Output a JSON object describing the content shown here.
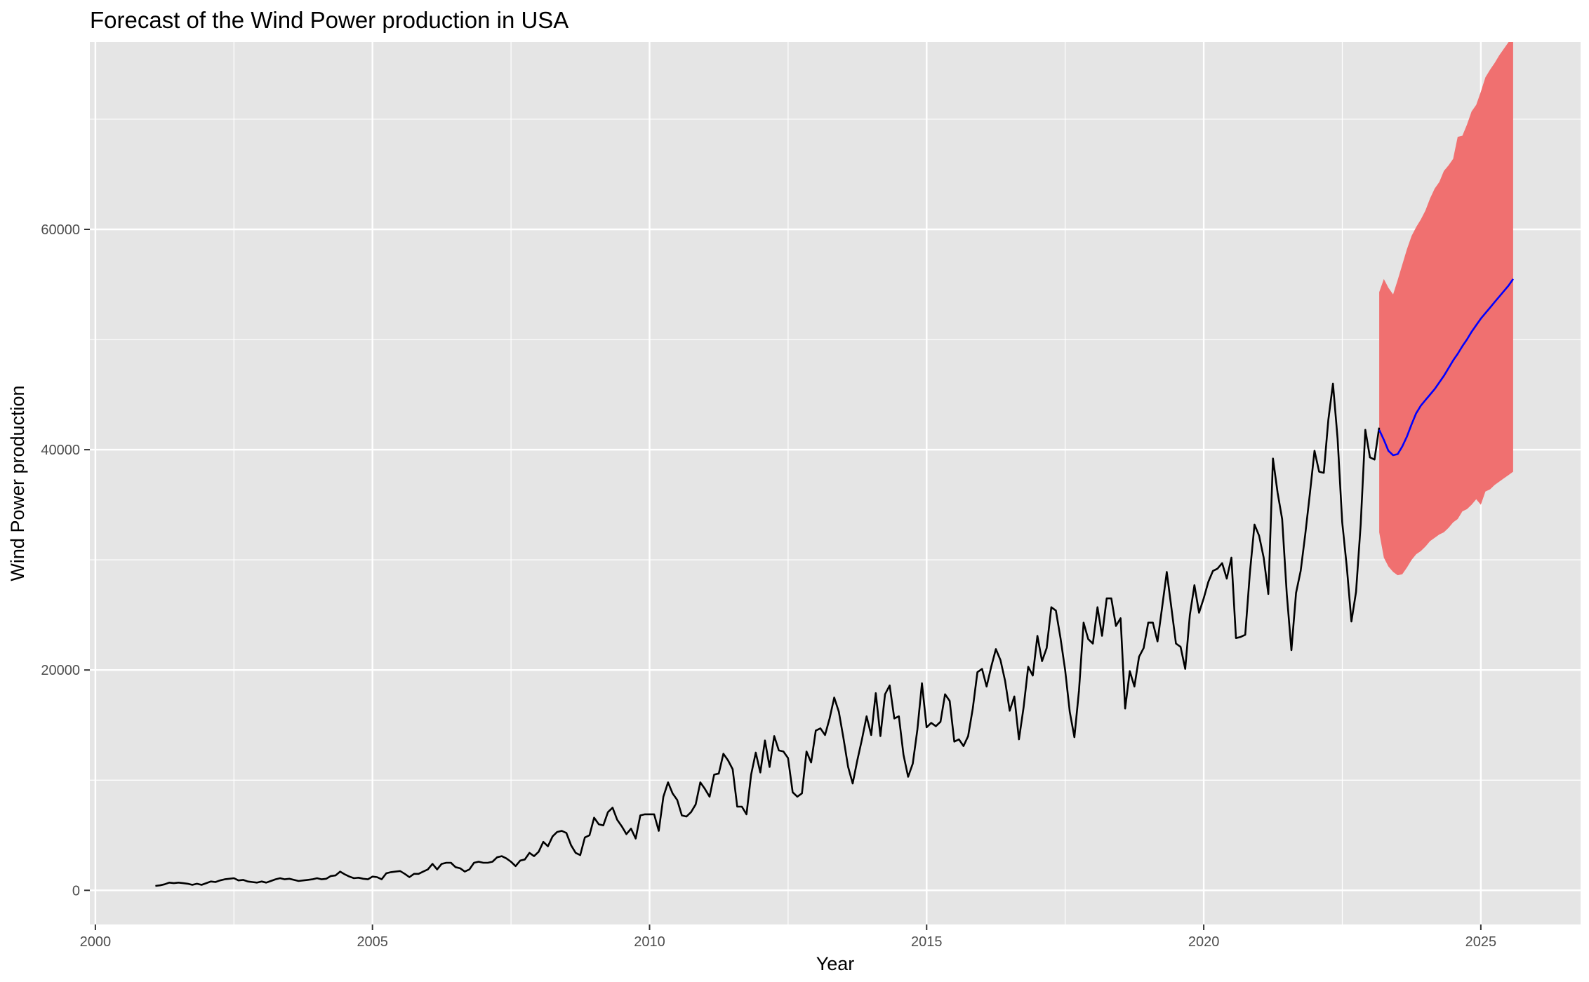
{
  "chart_data": {
    "type": "line",
    "title": "Forecast of the Wind Power production in USA",
    "xlabel": "Year",
    "ylabel": "Wind Power production",
    "xlim": [
      1999.9,
      2026.8
    ],
    "ylim": [
      -3100,
      77000
    ],
    "x_ticks": [
      2000,
      2005,
      2010,
      2015,
      2020,
      2025
    ],
    "x_tick_labels": [
      "2000",
      "2005",
      "2010",
      "2015",
      "2020",
      "2025"
    ],
    "y_ticks": [
      0,
      20000,
      40000,
      60000
    ],
    "y_tick_labels": [
      "0",
      "20000",
      "40000",
      "60000"
    ],
    "grid": true,
    "background": "#e5e5e5",
    "colors": {
      "history": "#000000",
      "forecast": "#0000ff",
      "interval": "#f07070"
    },
    "history": {
      "x_start": 2001.083,
      "x_step": 0.08333,
      "values": [
        400,
        450,
        550,
        700,
        650,
        700,
        650,
        600,
        500,
        600,
        500,
        650,
        800,
        750,
        900,
        1000,
        1050,
        1100,
        900,
        950,
        800,
        750,
        700,
        800,
        700,
        850,
        1000,
        1100,
        1000,
        1050,
        950,
        850,
        900,
        950,
        1000,
        1100,
        1000,
        1050,
        1300,
        1350,
        1700,
        1450,
        1250,
        1100,
        1150,
        1050,
        1000,
        1250,
        1200,
        1000,
        1550,
        1650,
        1700,
        1750,
        1500,
        1200,
        1500,
        1500,
        1700,
        1900,
        2400,
        1900,
        2400,
        2500,
        2500,
        2100,
        2000,
        1700,
        1900,
        2500,
        2600,
        2500,
        2500,
        2600,
        3000,
        3100,
        2900,
        2600,
        2200,
        2700,
        2800,
        3400,
        3100,
        3500,
        4400,
        4000,
        4900,
        5300,
        5400,
        5200,
        4100,
        3400,
        3200,
        4800,
        5000,
        6600,
        6000,
        5900,
        7100,
        7500,
        6400,
        5800,
        5100,
        5600,
        4700,
        6800,
        6900,
        6900,
        6900,
        5400,
        8500,
        9800,
        8800,
        8200,
        6800,
        6700,
        7100,
        7800,
        9800,
        9200,
        8500,
        10500,
        10600,
        12400,
        11800,
        11000,
        7600,
        7600,
        6900,
        10500,
        12500,
        10700,
        13600,
        11200,
        14000,
        12700,
        12600,
        12000,
        8900,
        8500,
        8800,
        12600,
        11600,
        14500,
        14700,
        14100,
        15600,
        17500,
        16200,
        13800,
        11200,
        9700,
        11800,
        13700,
        15800,
        14100,
        17900,
        14000,
        17800,
        18600,
        15600,
        15800,
        12300,
        10300,
        11500,
        14600,
        18800,
        14800,
        15200,
        14900,
        15300,
        17800,
        17200,
        13500,
        13700,
        13100,
        14000,
        16500,
        19800,
        20100,
        18500,
        20300,
        21900,
        20900,
        19000,
        16300,
        17600,
        13700,
        16600,
        20300,
        19500,
        23100,
        20800,
        22000,
        25700,
        25400,
        22900,
        20000,
        16200,
        13900,
        18100,
        24300,
        22800,
        22400,
        25700,
        23100,
        26500,
        26500,
        24000,
        24700,
        16500,
        19900,
        18500,
        21200,
        22000,
        24300,
        24300,
        22600,
        25700,
        28900,
        25700,
        22400,
        22100,
        20100,
        25000,
        27700,
        25200,
        26500,
        28000,
        29000,
        29200,
        29700,
        28300,
        30200,
        22900,
        23000,
        23200,
        28800,
        33200,
        32200,
        30200,
        26900,
        39200,
        36100,
        33700,
        26900,
        21800,
        27000,
        29000,
        32300,
        36000,
        39900,
        38000,
        37900,
        42700,
        46000,
        41000,
        33400,
        29300,
        24400,
        27100,
        33200,
        41800,
        39300,
        39100,
        42000
      ]
    },
    "forecast": {
      "x": [
        2023.167,
        2023.25,
        2023.333,
        2023.417,
        2023.5,
        2023.583,
        2023.667,
        2023.75,
        2023.833,
        2023.917,
        2024.0,
        2024.083,
        2024.167,
        2024.25,
        2024.333,
        2024.417,
        2024.5,
        2024.583,
        2024.667,
        2024.75,
        2024.833,
        2024.917,
        2025.0,
        2025.083,
        2025.167,
        2025.25,
        2025.333,
        2025.417,
        2025.5,
        2025.583
      ],
      "mean": [
        41800,
        40900,
        39900,
        39500,
        39600,
        40300,
        41200,
        42300,
        43300,
        44000,
        44500,
        45000,
        45500,
        46100,
        46700,
        47400,
        48100,
        48700,
        49400,
        50000,
        50700,
        51300,
        51900,
        52400,
        52900,
        53400,
        53900,
        54400,
        54900,
        55500
      ],
      "lower": [
        32500,
        30200,
        29400,
        28900,
        28600,
        28700,
        29300,
        30000,
        30500,
        30800,
        31200,
        31700,
        32000,
        32300,
        32500,
        32900,
        33400,
        33700,
        34400,
        34600,
        35000,
        35500,
        35000,
        36200,
        36400,
        36800,
        37100,
        37400,
        37700,
        38000
      ],
      "upper": [
        54300,
        55500,
        54700,
        54100,
        55400,
        56800,
        58200,
        59400,
        60200,
        60900,
        61700,
        62800,
        63700,
        64300,
        65300,
        65800,
        66400,
        68400,
        68500,
        69500,
        70700,
        71300,
        72500,
        73800,
        74500,
        75100,
        75800,
        76400,
        77000,
        77000
      ]
    }
  }
}
